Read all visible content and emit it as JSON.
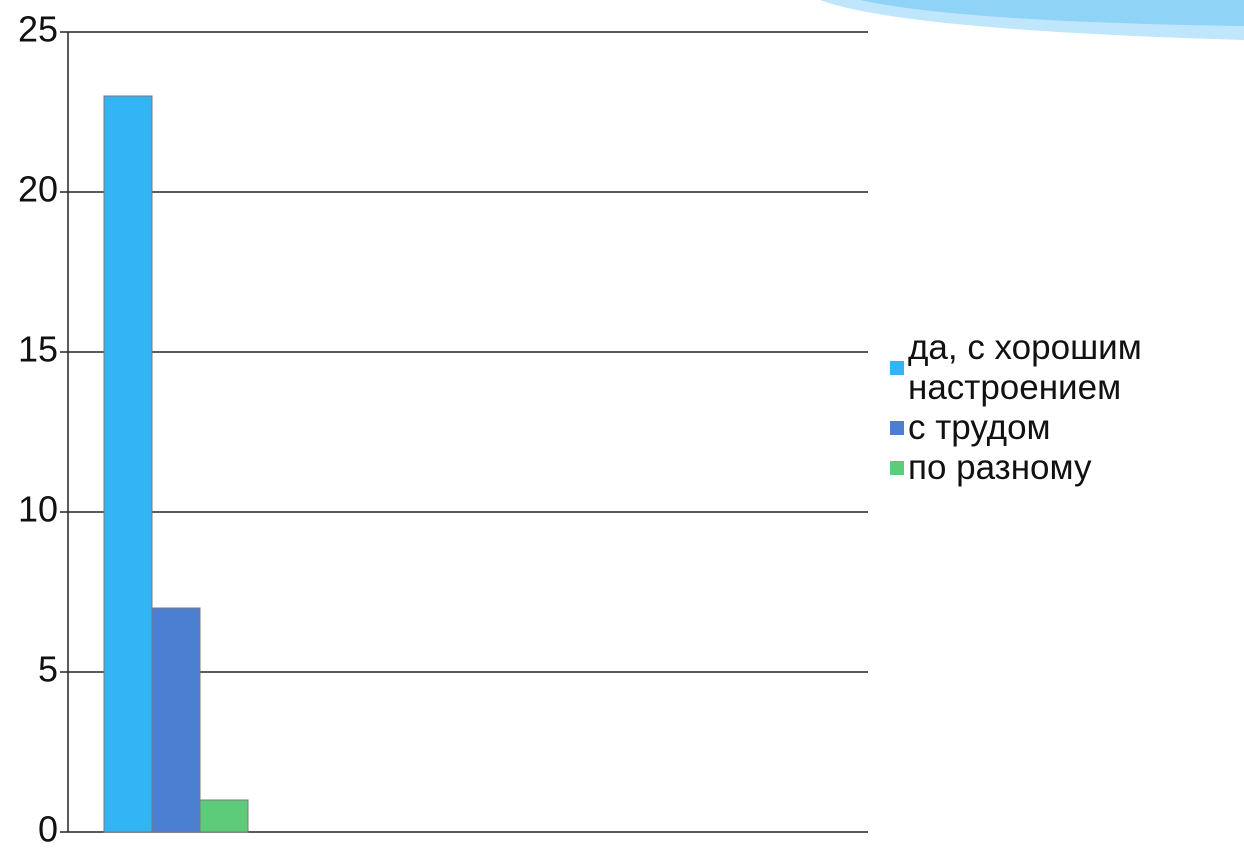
{
  "chart_data": {
    "type": "bar",
    "categories": [
      null
    ],
    "series": [
      {
        "name": "да, с хорошим настроением",
        "color": "#33b4f4",
        "values": [
          23
        ]
      },
      {
        "name": "с трудом",
        "color": "#4a7fd2",
        "values": [
          7
        ]
      },
      {
        "name": "по разному",
        "color": "#5ccb7a",
        "values": [
          1
        ]
      }
    ],
    "ylim": [
      0,
      25
    ],
    "yticks": [
      0,
      5,
      10,
      15,
      20,
      25
    ],
    "grid": true,
    "legend": "right"
  }
}
